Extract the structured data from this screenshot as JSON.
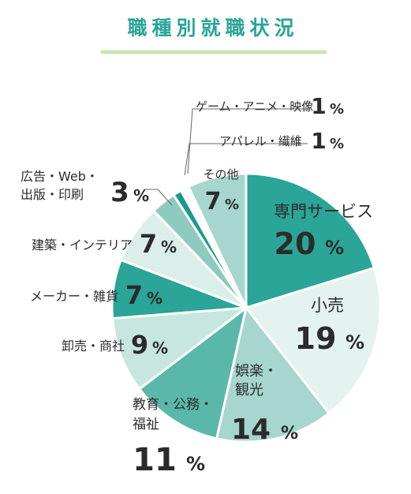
{
  "title": "職種別就職状況",
  "colors": {
    "title": "#2aa597",
    "rule": "#c9e6b3",
    "leader": "#666666"
  },
  "chart_data": {
    "type": "pie",
    "title": "職種別就職状況",
    "unit": "%",
    "slices": [
      {
        "label": "専門サービス",
        "value": 20,
        "color": "#2aa597"
      },
      {
        "label": "小売",
        "value": 19,
        "color": "#e4f3f0"
      },
      {
        "label": "娯楽・観光",
        "value": 14,
        "color": "#a6d6cd"
      },
      {
        "label": "教育・公務・福祉",
        "value": 11,
        "color": "#5ab8aa"
      },
      {
        "label": "卸売・商社",
        "value": 9,
        "color": "#c6e6df"
      },
      {
        "label": "メーカー・雑貨",
        "value": 7,
        "color": "#2aa597"
      },
      {
        "label": "建築・インテリア",
        "value": 7,
        "color": "#dceee9"
      },
      {
        "label": "広告・Web・出版・印刷",
        "value": 3,
        "color": "#8ecabf"
      },
      {
        "label": "アパレル・繊維",
        "value": 1,
        "color": "#1a9a8a"
      },
      {
        "label": "ゲーム・アニメ・映像",
        "value": 1,
        "color": "#ffffff"
      },
      {
        "label": "その他",
        "value": 7,
        "color": "#a6d6cd"
      }
    ]
  }
}
